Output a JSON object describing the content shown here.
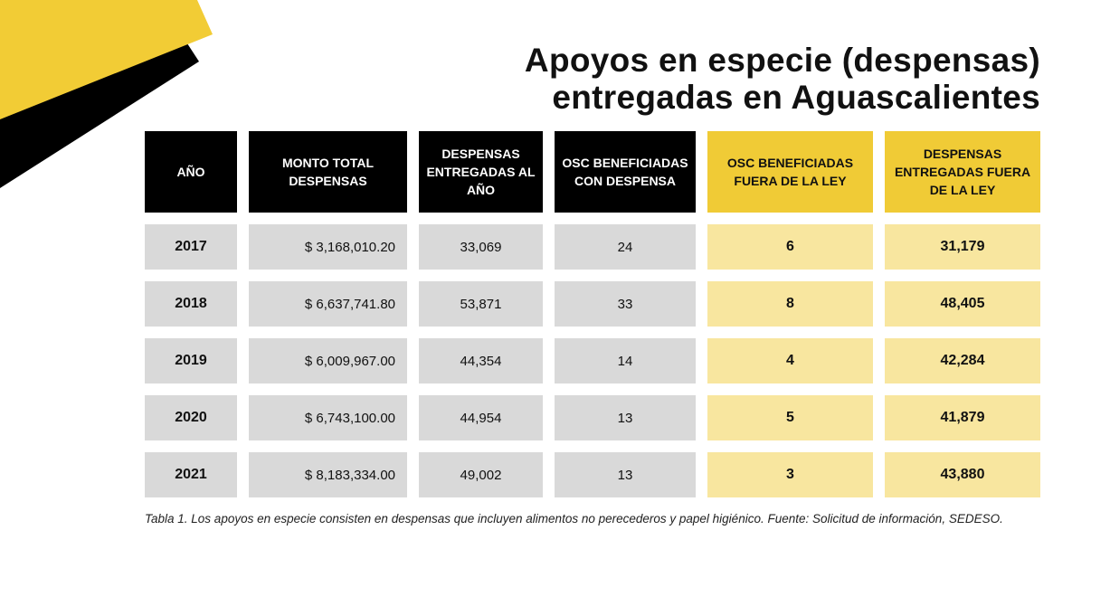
{
  "title": {
    "line1": "Apoyos en especie (despensas)",
    "line2": "entregadas en Aguascalientes"
  },
  "colors": {
    "header_dark": "#000000",
    "header_yellow": "#f0cb36",
    "cell_gray": "#d9d9d9",
    "cell_lightyellow": "#f8e69f",
    "deco_yellow": "#f2cc35"
  },
  "table": {
    "headers": [
      "AÑO",
      "MONTO TOTAL DESPENSAS",
      "DESPENSAS ENTREGADAS AL AÑO",
      "OSC BENEFICIADAS CON DESPENSA",
      "OSC BENEFICIADAS FUERA DE LA LEY",
      "DESPENSAS ENTREGADAS FUERA DE LA LEY"
    ],
    "rows": [
      [
        "2017",
        "$ 3,168,010.20",
        "33,069",
        "24",
        "6",
        "31,179"
      ],
      [
        "2018",
        "$ 6,637,741.80",
        "53,871",
        "33",
        "8",
        "48,405"
      ],
      [
        "2019",
        "$ 6,009,967.00",
        "44,354",
        "14",
        "4",
        "42,284"
      ],
      [
        "2020",
        "$ 6,743,100.00",
        "44,954",
        "13",
        "5",
        "41,879"
      ],
      [
        "2021",
        "$ 8,183,334.00",
        "49,002",
        "13",
        "3",
        "43,880"
      ]
    ]
  },
  "caption": "Tabla 1. Los apoyos en especie consisten en despensas que incluyen alimentos no perecederos y papel higiénico. Fuente: Solicitud de información, SEDESO."
}
